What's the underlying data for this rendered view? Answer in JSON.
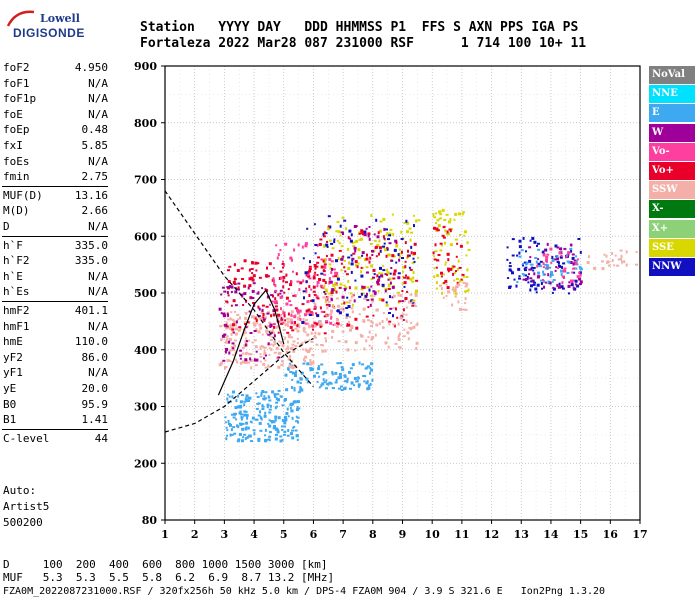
{
  "logo": {
    "top": "Lowell",
    "main": "DIGISONDE"
  },
  "header": {
    "line1": "Station   YYYY DAY   DDD HHMMSS P1  FFS S AXN PPS IGA PS",
    "line2": "Fortaleza 2022 Mar28 087 231000 RSF      1 714 100 10+ 11"
  },
  "params": [
    {
      "name": "foF2",
      "value": "4.950"
    },
    {
      "name": "foF1",
      "value": "N/A"
    },
    {
      "name": "foF1p",
      "value": "N/A"
    },
    {
      "name": "foE",
      "value": "N/A"
    },
    {
      "name": "foEp",
      "value": "0.48"
    },
    {
      "name": "fxI",
      "value": "5.85"
    },
    {
      "name": "foEs",
      "value": "N/A"
    },
    {
      "name": "fmin",
      "value": "2.75"
    },
    {
      "name": "MUF(D)",
      "value": "13.16"
    },
    {
      "name": "M(D)",
      "value": "2.66"
    },
    {
      "name": "D",
      "value": "N/A"
    },
    {
      "name": "h`F",
      "value": "335.0"
    },
    {
      "name": "h`F2",
      "value": "335.0"
    },
    {
      "name": "h`E",
      "value": "N/A"
    },
    {
      "name": "h`Es",
      "value": "N/A"
    },
    {
      "name": "hmF2",
      "value": "401.1"
    },
    {
      "name": "hmF1",
      "value": "N/A"
    },
    {
      "name": "hmE",
      "value": "110.0"
    },
    {
      "name": "yF2",
      "value": "86.0"
    },
    {
      "name": "yF1",
      "value": "N/A"
    },
    {
      "name": "yE",
      "value": "20.0"
    },
    {
      "name": "B0",
      "value": "95.9"
    },
    {
      "name": "B1",
      "value": "1.41"
    },
    {
      "name": "C-level",
      "value": "44"
    }
  ],
  "auto": {
    "line1": "Auto:",
    "line2": "Artist5",
    "line3": "500200"
  },
  "footer": {
    "d_line": "D     100  200  400  600  800 1000 1500 3000 [km]",
    "muf_line": "MUF   5.3  5.3  5.5  5.8  6.2  6.9  8.7 13.2 [MHz]",
    "file_line": "FZA0M_2022087231000.RSF / 320fx256h 50 kHz 5.0 km / DPS-4 FZA0M 904 / 3.9 S 321.6 E   Ion2Png 1.3.20"
  },
  "legend": [
    {
      "label": "NoVal",
      "color": "#808080"
    },
    {
      "label": "NNE",
      "color": "#00e0ff"
    },
    {
      "label": "E",
      "color": "#3ea8f0"
    },
    {
      "label": "W",
      "color": "#a0009a"
    },
    {
      "label": "Vo-",
      "color": "#ff3fa0"
    },
    {
      "label": "Vo+",
      "color": "#e8002a"
    },
    {
      "label": "SSW",
      "color": "#f4b0a8"
    },
    {
      "label": "X-",
      "color": "#007a10"
    },
    {
      "label": "X+",
      "color": "#8cd078"
    },
    {
      "label": "SSE",
      "color": "#d8d800"
    },
    {
      "label": "NNW",
      "color": "#1010c0"
    }
  ],
  "chart_data": {
    "type": "scatter",
    "x_ticks": [
      "1",
      "2",
      "3",
      "4",
      "5",
      "6",
      "7",
      "8",
      "9",
      "10",
      "11",
      "12",
      "13",
      "14",
      "15",
      "16",
      "17"
    ],
    "y_ticks": [
      "80",
      "200",
      "300",
      "400",
      "500",
      "600",
      "700",
      "800",
      "900"
    ],
    "xlim": [
      1,
      17
    ],
    "ylim": [
      80,
      900
    ],
    "grid": true,
    "legend_position": "right",
    "clusters": [
      {
        "name": "E",
        "x": [
          3.0,
          5.5
        ],
        "y": [
          240,
          330
        ],
        "n": 220,
        "color": "#3ea8f0"
      },
      {
        "name": "E",
        "x": [
          5.0,
          8.0
        ],
        "y": [
          330,
          380
        ],
        "n": 120,
        "color": "#3ea8f0"
      },
      {
        "name": "SSW",
        "x": [
          2.8,
          6.0
        ],
        "y": [
          370,
          470
        ],
        "n": 260,
        "color": "#f4b0a8"
      },
      {
        "name": "Vo+",
        "x": [
          3.0,
          6.5
        ],
        "y": [
          430,
          560
        ],
        "n": 160,
        "color": "#e8002a"
      },
      {
        "name": "W",
        "x": [
          2.8,
          5.0
        ],
        "y": [
          380,
          520
        ],
        "n": 80,
        "color": "#a0009a"
      },
      {
        "name": "Vo-",
        "x": [
          4.5,
          6.8
        ],
        "y": [
          440,
          590
        ],
        "n": 90,
        "color": "#ff3fa0"
      },
      {
        "name": "SSE",
        "x": [
          6.3,
          9.5
        ],
        "y": [
          480,
          640
        ],
        "n": 150,
        "color": "#d8d800"
      },
      {
        "name": "NNW",
        "x": [
          5.5,
          9.5
        ],
        "y": [
          450,
          640
        ],
        "n": 90,
        "color": "#1010c0"
      },
      {
        "name": "Vo+",
        "x": [
          6.0,
          9.5
        ],
        "y": [
          440,
          620
        ],
        "n": 110,
        "color": "#e8002a"
      },
      {
        "name": "W",
        "x": [
          6.5,
          9.0
        ],
        "y": [
          470,
          620
        ],
        "n": 60,
        "color": "#a0009a"
      },
      {
        "name": "SSW",
        "x": [
          6.0,
          9.5
        ],
        "y": [
          400,
          500
        ],
        "n": 130,
        "color": "#f4b0a8"
      },
      {
        "name": "SSE",
        "x": [
          10.0,
          11.2
        ],
        "y": [
          500,
          650
        ],
        "n": 70,
        "color": "#d8d800"
      },
      {
        "name": "Vo+",
        "x": [
          10.0,
          11.0
        ],
        "y": [
          510,
          620
        ],
        "n": 40,
        "color": "#e8002a"
      },
      {
        "name": "SSW",
        "x": [
          10.2,
          11.2
        ],
        "y": [
          470,
          520
        ],
        "n": 25,
        "color": "#f4b0a8"
      },
      {
        "name": "NNW",
        "x": [
          12.5,
          15.0
        ],
        "y": [
          500,
          600
        ],
        "n": 90,
        "color": "#1010c0"
      },
      {
        "name": "W",
        "x": [
          13.0,
          15.0
        ],
        "y": [
          510,
          590
        ],
        "n": 50,
        "color": "#a0009a"
      },
      {
        "name": "E",
        "x": [
          12.8,
          15.0
        ],
        "y": [
          520,
          580
        ],
        "n": 50,
        "color": "#3ea8f0"
      },
      {
        "name": "Vo-",
        "x": [
          13.5,
          15.0
        ],
        "y": [
          520,
          580
        ],
        "n": 30,
        "color": "#ff3fa0"
      },
      {
        "name": "SSW",
        "x": [
          15.0,
          17.0
        ],
        "y": [
          545,
          580
        ],
        "n": 25,
        "color": "#f4b0a8"
      }
    ],
    "curves": [
      {
        "name": "profile-dashed",
        "style": "dashed",
        "points": [
          [
            1.0,
            680
          ],
          [
            2.0,
            605
          ],
          [
            3.0,
            530
          ],
          [
            4.0,
            470
          ],
          [
            5.0,
            395
          ],
          [
            6.0,
            335
          ]
        ]
      },
      {
        "name": "lower-dashed",
        "style": "dashed",
        "points": [
          [
            1.0,
            255
          ],
          [
            2.0,
            270
          ],
          [
            3.0,
            300
          ],
          [
            4.0,
            345
          ],
          [
            5.0,
            390
          ],
          [
            6.0,
            420
          ]
        ]
      },
      {
        "name": "trace-solid",
        "style": "solid",
        "points": [
          [
            2.8,
            320
          ],
          [
            3.3,
            380
          ],
          [
            3.7,
            440
          ],
          [
            4.0,
            480
          ],
          [
            4.4,
            505
          ],
          [
            4.7,
            470
          ],
          [
            4.9,
            430
          ],
          [
            5.0,
            410
          ]
        ]
      }
    ]
  }
}
